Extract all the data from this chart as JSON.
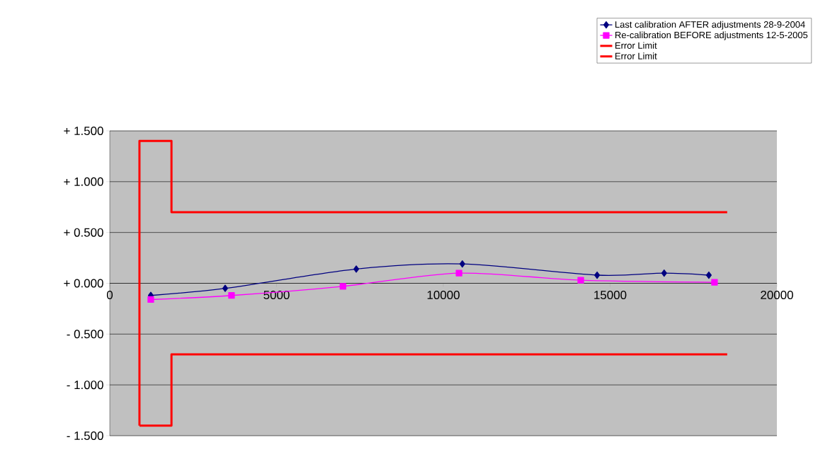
{
  "chart_data": {
    "type": "line",
    "xlim": [
      0,
      20000
    ],
    "xticks": [
      0,
      5000,
      10000,
      15000,
      20000
    ],
    "ylim": [
      -1.5,
      1.5
    ],
    "yticks": [
      {
        "value": -1.5,
        "label": "- 1.500"
      },
      {
        "value": -1.0,
        "label": "- 1.000"
      },
      {
        "value": -0.5,
        "label": "- 0.500"
      },
      {
        "value": 0,
        "label": "+ 0.000"
      },
      {
        "value": 0.5,
        "label": "+ 0.500"
      },
      {
        "value": 1.0,
        "label": "+ 1.000"
      },
      {
        "value": 1.5,
        "label": "+ 1.500"
      }
    ],
    "grid": "y",
    "legend": "top right",
    "series": [
      {
        "name": "Last calibration AFTER adjustments 28-9-2004",
        "color": "#000080",
        "marker": "diamond",
        "x": [
          1230,
          3460,
          7390,
          10570,
          14610,
          16620,
          17960
        ],
        "values": [
          -0.12,
          -0.05,
          0.14,
          0.19,
          0.08,
          0.1,
          0.08
        ]
      },
      {
        "name": "Re-calibration BEFORE adjustments 12-5-2005",
        "color": "#ff00ff",
        "marker": "square",
        "x": [
          1230,
          3650,
          6990,
          10470,
          14120,
          18130
        ],
        "values": [
          -0.16,
          -0.12,
          -0.03,
          0.1,
          0.03,
          0.01
        ]
      },
      {
        "name": "Error Limit",
        "color": "#ff0000",
        "marker": "none",
        "x": [
          890,
          890,
          1850,
          1850,
          18510
        ],
        "values": [
          -1.4,
          1.4,
          1.4,
          0.7,
          0.7
        ]
      },
      {
        "name": "Error Limit",
        "color": "#ff0000",
        "marker": "none",
        "x": [
          890,
          1850,
          1850,
          18510
        ],
        "values": [
          -1.4,
          -1.4,
          -0.7,
          -0.7
        ]
      }
    ]
  }
}
